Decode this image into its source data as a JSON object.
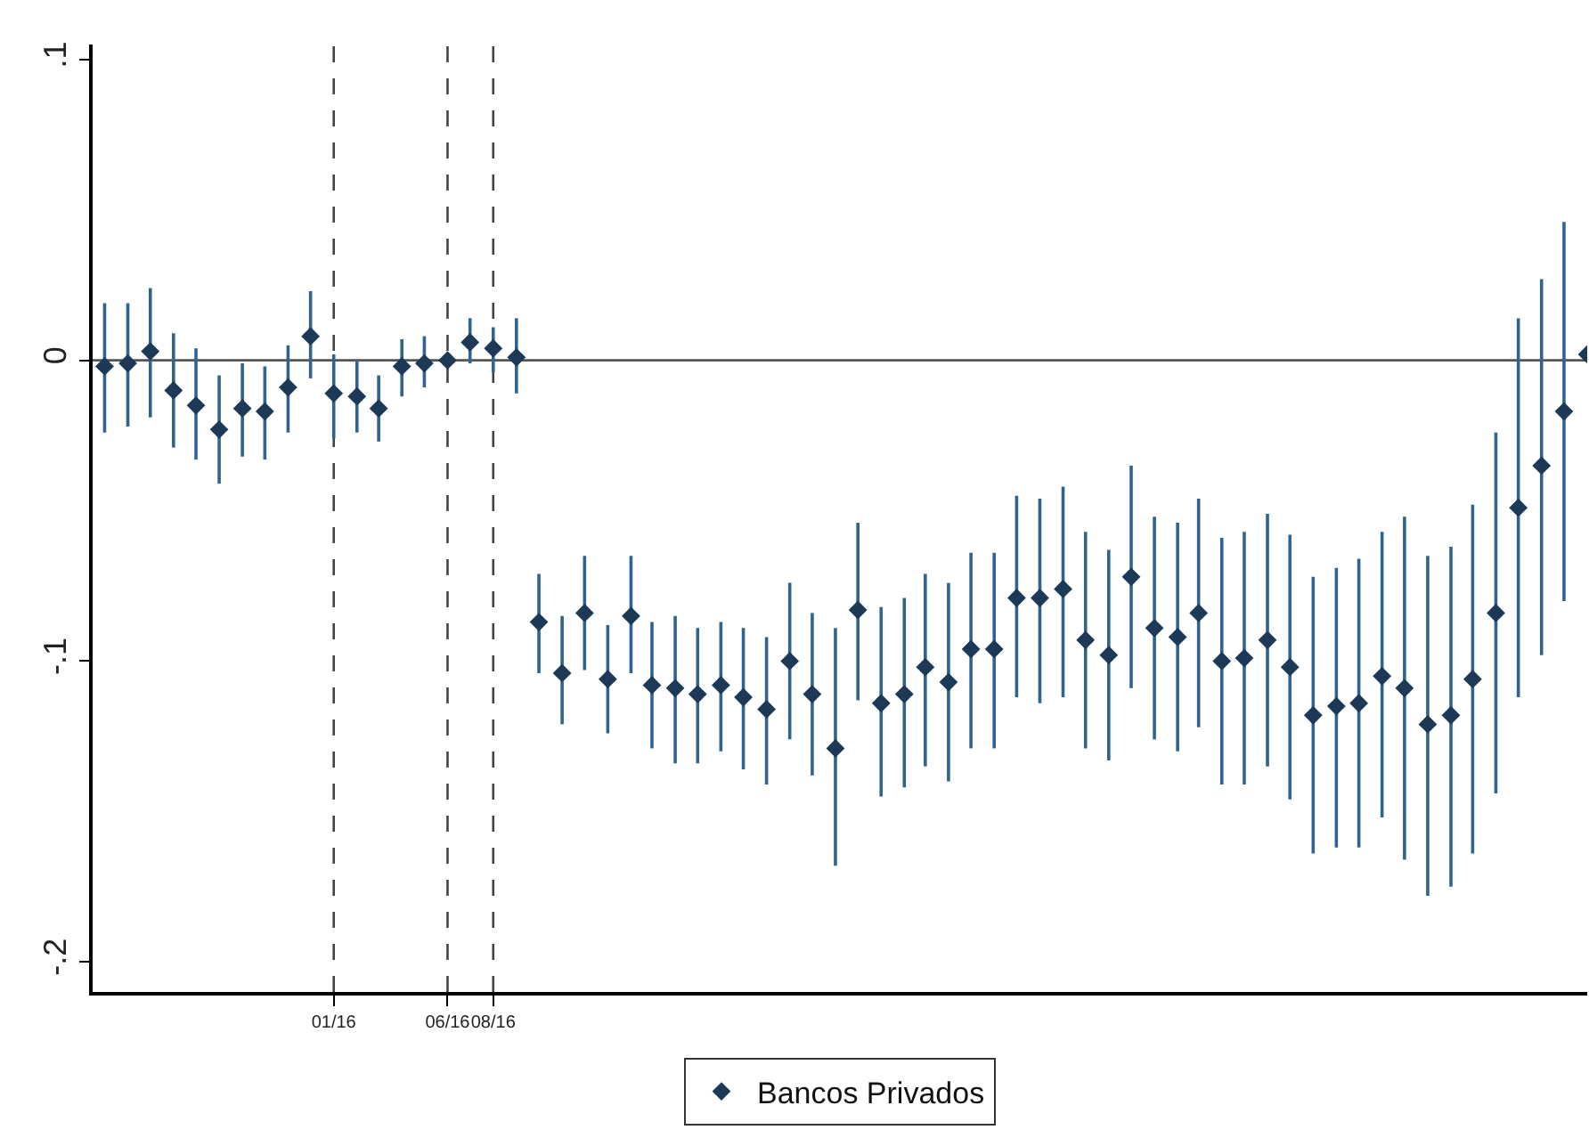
{
  "chart_data": {
    "type": "scatter",
    "marker": "diamond",
    "legend": "bottom",
    "grid": false,
    "x": [
      "2015-03",
      "2015-04",
      "2015-05",
      "2015-06",
      "2015-07",
      "2015-08",
      "2015-09",
      "2015-10",
      "2015-11",
      "2015-12",
      "2016-01",
      "2016-02",
      "2016-03",
      "2016-04",
      "2016-05",
      "2016-06",
      "2016-07",
      "2016-08",
      "2016-09",
      "2016-10",
      "2016-11",
      "2016-12",
      "2017-01",
      "2017-02",
      "2017-03",
      "2017-04",
      "2017-05",
      "2017-06",
      "2017-07",
      "2017-08",
      "2017-09",
      "2017-10",
      "2017-11",
      "2017-12",
      "2018-01",
      "2018-02",
      "2018-03",
      "2018-04",
      "2018-05",
      "2018-06",
      "2018-07",
      "2018-08",
      "2018-09",
      "2018-10",
      "2018-11",
      "2018-12",
      "2019-01",
      "2019-02",
      "2019-03",
      "2019-04",
      "2019-05",
      "2019-06",
      "2019-07",
      "2019-08",
      "2019-09",
      "2019-10",
      "2019-11",
      "2019-12",
      "2020-01",
      "2020-02",
      "2020-03",
      "2020-04",
      "2020-05",
      "2020-06",
      "2020-07",
      "2020-08"
    ],
    "xlim": [
      "2015-02-13",
      "2020-08-01"
    ],
    "xticks": [
      {
        "value": "2016-01",
        "label": "01/16"
      },
      {
        "value": "2016-06",
        "label": "06/16"
      },
      {
        "value": "2016-08",
        "label": "08/16"
      }
    ],
    "ylim": [
      -0.21,
      0.105
    ],
    "yticks": [
      {
        "value": -0.2,
        "label": "-.2"
      },
      {
        "value": -0.1,
        "label": "-.1"
      },
      0,
      {
        "value": 0.1,
        "label": ".1"
      }
    ],
    "ref_lines": [
      {
        "axis": "y",
        "value": 0,
        "line_style": "solid",
        "color": "#555555"
      },
      {
        "axis": "x",
        "value": "2016-01",
        "line_style": "dashed",
        "color": "#444444"
      },
      {
        "axis": "x",
        "value": "2016-06",
        "line_style": "dashed",
        "color": "#444444"
      },
      {
        "axis": "x",
        "value": "2016-08",
        "line_style": "dashed",
        "color": "#444444"
      }
    ],
    "series": [
      {
        "name": "Bancos Privados",
        "color": "#1c3a57",
        "values": [
          -0.002,
          -0.001,
          0.003,
          -0.01,
          -0.015,
          -0.023,
          -0.016,
          -0.017,
          -0.009,
          0.008,
          -0.011,
          -0.012,
          -0.016,
          -0.002,
          -0.001,
          0,
          0.006,
          0.004,
          0.001,
          -0.087,
          -0.104,
          -0.084,
          -0.106,
          -0.085,
          -0.108,
          -0.109,
          -0.111,
          -0.108,
          -0.112,
          -0.116,
          -0.1,
          -0.111,
          -0.129,
          -0.083,
          -0.114,
          -0.111,
          -0.102,
          -0.107,
          -0.096,
          -0.096,
          -0.079,
          -0.079,
          -0.076,
          -0.093,
          -0.098,
          -0.072,
          -0.089,
          -0.092,
          -0.084,
          -0.1,
          -0.099,
          -0.093,
          -0.102,
          -0.118,
          -0.115,
          -0.114,
          -0.105,
          -0.109,
          -0.121,
          -0.118,
          -0.106,
          -0.084,
          -0.049,
          -0.035,
          -0.017,
          0.002
        ],
        "errors": [
          [
            -0.024,
            0.019
          ],
          [
            -0.022,
            0.019
          ],
          [
            -0.019,
            0.024
          ],
          [
            -0.029,
            0.009
          ],
          [
            -0.033,
            0.004
          ],
          [
            -0.041,
            -0.005
          ],
          [
            -0.032,
            -0.001
          ],
          [
            -0.033,
            -0.002
          ],
          [
            -0.024,
            0.005
          ],
          [
            -0.006,
            0.023
          ],
          [
            -0.026,
            0.002
          ],
          [
            -0.024,
            0
          ],
          [
            -0.027,
            -0.005
          ],
          [
            -0.012,
            0.007
          ],
          [
            -0.009,
            0.008
          ],
          null,
          [
            -0.001,
            0.014
          ],
          [
            -0.004,
            0.011
          ],
          [
            -0.011,
            0.014
          ],
          [
            -0.104,
            -0.071
          ],
          [
            -0.121,
            -0.085
          ],
          [
            -0.103,
            -0.065
          ],
          [
            -0.124,
            -0.088
          ],
          [
            -0.104,
            -0.065
          ],
          [
            -0.129,
            -0.087
          ],
          [
            -0.134,
            -0.085
          ],
          [
            -0.134,
            -0.089
          ],
          [
            -0.13,
            -0.087
          ],
          [
            -0.136,
            -0.089
          ],
          [
            -0.141,
            -0.092
          ],
          [
            -0.126,
            -0.074
          ],
          [
            -0.138,
            -0.084
          ],
          [
            -0.168,
            -0.089
          ],
          [
            -0.113,
            -0.054
          ],
          [
            -0.145,
            -0.082
          ],
          [
            -0.142,
            -0.079
          ],
          [
            -0.135,
            -0.071
          ],
          [
            -0.14,
            -0.074
          ],
          [
            -0.129,
            -0.064
          ],
          [
            -0.129,
            -0.064
          ],
          [
            -0.112,
            -0.045
          ],
          [
            -0.114,
            -0.046
          ],
          [
            -0.112,
            -0.042
          ],
          [
            -0.129,
            -0.057
          ],
          [
            -0.133,
            -0.063
          ],
          [
            -0.109,
            -0.035
          ],
          [
            -0.126,
            -0.052
          ],
          [
            -0.13,
            -0.054
          ],
          [
            -0.122,
            -0.046
          ],
          [
            -0.141,
            -0.059
          ],
          [
            -0.141,
            -0.057
          ],
          [
            -0.135,
            -0.051
          ],
          [
            -0.146,
            -0.058
          ],
          [
            -0.164,
            -0.072
          ],
          [
            -0.162,
            -0.069
          ],
          [
            -0.162,
            -0.066
          ],
          [
            -0.152,
            -0.057
          ],
          [
            -0.166,
            -0.052
          ],
          [
            -0.178,
            -0.065
          ],
          [
            -0.175,
            -0.062
          ],
          [
            -0.164,
            -0.048
          ],
          [
            -0.144,
            -0.024
          ],
          [
            -0.112,
            0.014
          ],
          [
            -0.098,
            0.027
          ],
          [
            -0.08,
            0.046
          ],
          null
        ]
      }
    ]
  }
}
